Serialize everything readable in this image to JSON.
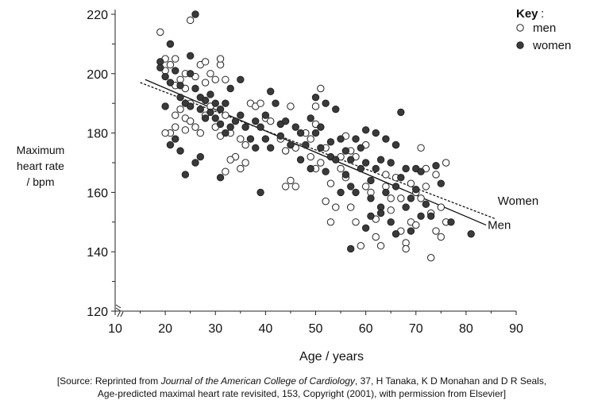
{
  "chart_data": {
    "type": "scatter",
    "xlabel": "Age / years",
    "ylabel": [
      "Maximum",
      "heart rate",
      "/ bpm"
    ],
    "xlim": [
      10,
      90
    ],
    "ylim": [
      120,
      220
    ],
    "x_ticks": [
      "10",
      "20",
      "30",
      "40",
      "50",
      "60",
      "70",
      "80",
      "90"
    ],
    "y_ticks": [
      "120",
      "140",
      "160",
      "180",
      "200",
      "220"
    ],
    "axis_break": true,
    "legend": {
      "title": "Key",
      "position": "top-right",
      "entries": [
        {
          "label": "men",
          "marker": "open-circle"
        },
        {
          "label": "women",
          "marker": "filled-circle"
        }
      ]
    },
    "series": [
      {
        "name": "men",
        "marker": "open-circle",
        "points": [
          [
            19,
            214
          ],
          [
            20,
            205
          ],
          [
            21,
            203
          ],
          [
            21,
            210
          ],
          [
            22,
            205
          ],
          [
            20,
            201
          ],
          [
            23,
            198
          ],
          [
            22,
            196
          ],
          [
            24,
            195
          ],
          [
            24,
            200
          ],
          [
            25,
            218
          ],
          [
            26,
            199
          ],
          [
            27,
            203
          ],
          [
            28,
            197
          ],
          [
            28,
            204
          ],
          [
            29,
            200
          ],
          [
            31,
            203
          ],
          [
            31,
            205
          ],
          [
            30,
            198
          ],
          [
            32,
            198
          ],
          [
            23,
            188
          ],
          [
            24,
            185
          ],
          [
            25,
            190
          ],
          [
            26,
            182
          ],
          [
            27,
            180
          ],
          [
            25,
            184
          ],
          [
            24,
            181
          ],
          [
            22,
            182
          ],
          [
            21,
            180
          ],
          [
            20,
            180
          ],
          [
            22,
            186
          ],
          [
            28,
            186
          ],
          [
            29,
            189
          ],
          [
            30,
            182
          ],
          [
            31,
            179
          ],
          [
            32,
            186
          ],
          [
            33,
            180
          ],
          [
            34,
            172
          ],
          [
            35,
            178
          ],
          [
            36,
            176
          ],
          [
            33,
            171
          ],
          [
            32,
            167
          ],
          [
            35,
            168
          ],
          [
            36,
            170
          ],
          [
            37,
            190
          ],
          [
            38,
            189
          ],
          [
            39,
            190
          ],
          [
            40,
            185
          ],
          [
            41,
            184
          ],
          [
            43,
            178
          ],
          [
            44,
            174
          ],
          [
            45,
            189
          ],
          [
            44,
            162
          ],
          [
            45,
            164
          ],
          [
            46,
            162
          ],
          [
            48,
            180
          ],
          [
            49,
            178
          ],
          [
            50,
            183
          ],
          [
            50,
            189
          ],
          [
            51,
            195
          ],
          [
            51,
            170
          ],
          [
            52,
            175
          ],
          [
            52,
            157
          ],
          [
            53,
            163
          ],
          [
            54,
            155
          ],
          [
            55,
            168
          ],
          [
            55,
            172
          ],
          [
            56,
            179
          ],
          [
            57,
            174
          ],
          [
            57,
            155
          ],
          [
            58,
            150
          ],
          [
            58,
            172
          ],
          [
            59,
            142
          ],
          [
            60,
            176
          ],
          [
            60,
            162
          ],
          [
            61,
            160
          ],
          [
            62,
            151
          ],
          [
            62,
            145
          ],
          [
            63,
            142
          ],
          [
            64,
            166
          ],
          [
            64,
            162
          ],
          [
            65,
            158
          ],
          [
            65,
            154
          ],
          [
            66,
            165
          ],
          [
            66,
            176
          ],
          [
            67,
            147
          ],
          [
            67,
            158
          ],
          [
            68,
            143
          ],
          [
            68,
            141
          ],
          [
            69,
            150
          ],
          [
            69,
            163
          ],
          [
            70,
            149
          ],
          [
            70,
            160
          ],
          [
            71,
            158
          ],
          [
            71,
            175
          ],
          [
            72,
            168
          ],
          [
            72,
            162
          ],
          [
            73,
            153
          ],
          [
            73,
            138
          ],
          [
            74,
            166
          ],
          [
            74,
            147
          ],
          [
            75,
            155
          ],
          [
            75,
            145
          ],
          [
            76,
            170
          ],
          [
            76,
            150
          ],
          [
            53,
            150
          ],
          [
            56,
            165
          ],
          [
            46,
            175
          ],
          [
            50,
            168
          ],
          [
            49,
            172
          ]
        ]
      },
      {
        "name": "women",
        "marker": "filled-circle",
        "points": [
          [
            19,
            204
          ],
          [
            19,
            202
          ],
          [
            20,
            199
          ],
          [
            21,
            210
          ],
          [
            22,
            201
          ],
          [
            21,
            197
          ],
          [
            23,
            196
          ],
          [
            23,
            192
          ],
          [
            24,
            190
          ],
          [
            25,
            189
          ],
          [
            25,
            200
          ],
          [
            26,
            220
          ],
          [
            26,
            195
          ],
          [
            25,
            206
          ],
          [
            27,
            192
          ],
          [
            27,
            188
          ],
          [
            28,
            191
          ],
          [
            28,
            185
          ],
          [
            29,
            193
          ],
          [
            29,
            187
          ],
          [
            30,
            190
          ],
          [
            30,
            185
          ],
          [
            31,
            188
          ],
          [
            31,
            183
          ],
          [
            32,
            190
          ],
          [
            32,
            180
          ],
          [
            33,
            195
          ],
          [
            33,
            182
          ],
          [
            34,
            184
          ],
          [
            35,
            198
          ],
          [
            35,
            186
          ],
          [
            36,
            182
          ],
          [
            37,
            178
          ],
          [
            38,
            175
          ],
          [
            38,
            184
          ],
          [
            39,
            182
          ],
          [
            40,
            178
          ],
          [
            40,
            186
          ],
          [
            41,
            194
          ],
          [
            41,
            175
          ],
          [
            42,
            190
          ],
          [
            43,
            183
          ],
          [
            43,
            179
          ],
          [
            44,
            184
          ],
          [
            45,
            176
          ],
          [
            46,
            182
          ],
          [
            47,
            171
          ],
          [
            47,
            180
          ],
          [
            48,
            176
          ],
          [
            49,
            168
          ],
          [
            49,
            185
          ],
          [
            50,
            192
          ],
          [
            50,
            180
          ],
          [
            51,
            182
          ],
          [
            51,
            175
          ],
          [
            52,
            190
          ],
          [
            52,
            167
          ],
          [
            53,
            172
          ],
          [
            53,
            177
          ],
          [
            54,
            188
          ],
          [
            54,
            171
          ],
          [
            55,
            160
          ],
          [
            55,
            178
          ],
          [
            56,
            166
          ],
          [
            56,
            174
          ],
          [
            57,
            171
          ],
          [
            57,
            162
          ],
          [
            58,
            160
          ],
          [
            58,
            178
          ],
          [
            59,
            168
          ],
          [
            59,
            175
          ],
          [
            60,
            170
          ],
          [
            60,
            181
          ],
          [
            61,
            164
          ],
          [
            61,
            158
          ],
          [
            62,
            180
          ],
          [
            62,
            168
          ],
          [
            63,
            171
          ],
          [
            63,
            155
          ],
          [
            64,
            178
          ],
          [
            64,
            160
          ],
          [
            65,
            150
          ],
          [
            65,
            170
          ],
          [
            66,
            176
          ],
          [
            66,
            162
          ],
          [
            67,
            187
          ],
          [
            67,
            165
          ],
          [
            68,
            155
          ],
          [
            68,
            168
          ],
          [
            69,
            147
          ],
          [
            69,
            158
          ],
          [
            70,
            161
          ],
          [
            70,
            168
          ],
          [
            71,
            152
          ],
          [
            71,
            167
          ],
          [
            72,
            156
          ],
          [
            73,
            152
          ],
          [
            74,
            169
          ],
          [
            75,
            163
          ],
          [
            77,
            150
          ],
          [
            81,
            146
          ],
          [
            20,
            189
          ],
          [
            21,
            176
          ],
          [
            22,
            178
          ],
          [
            23,
            174
          ],
          [
            26,
            170
          ],
          [
            27,
            172
          ],
          [
            24,
            166
          ],
          [
            31,
            165
          ],
          [
            39,
            160
          ],
          [
            57,
            141
          ],
          [
            60,
            148
          ],
          [
            63,
            153
          ],
          [
            66,
            146
          ],
          [
            61,
            152
          ]
        ]
      }
    ],
    "trend_lines": [
      {
        "name": "Women",
        "style": "dashed",
        "points": [
          [
            15,
            197
          ],
          [
            86,
            151
          ]
        ]
      },
      {
        "name": "Men",
        "style": "solid",
        "points": [
          [
            16,
            198
          ],
          [
            84,
            149
          ]
        ]
      }
    ]
  },
  "source": {
    "prefix": "[Source: Reprinted from ",
    "journal": "Journal of the American College of Cardiology",
    "rest_line1": ", 37, H Tanaka, K D Monahan and D R Seals,",
    "line2": "Age-predicted maximal heart rate revisited, 153, Copyright (2001), with permission from Elsevier]"
  }
}
